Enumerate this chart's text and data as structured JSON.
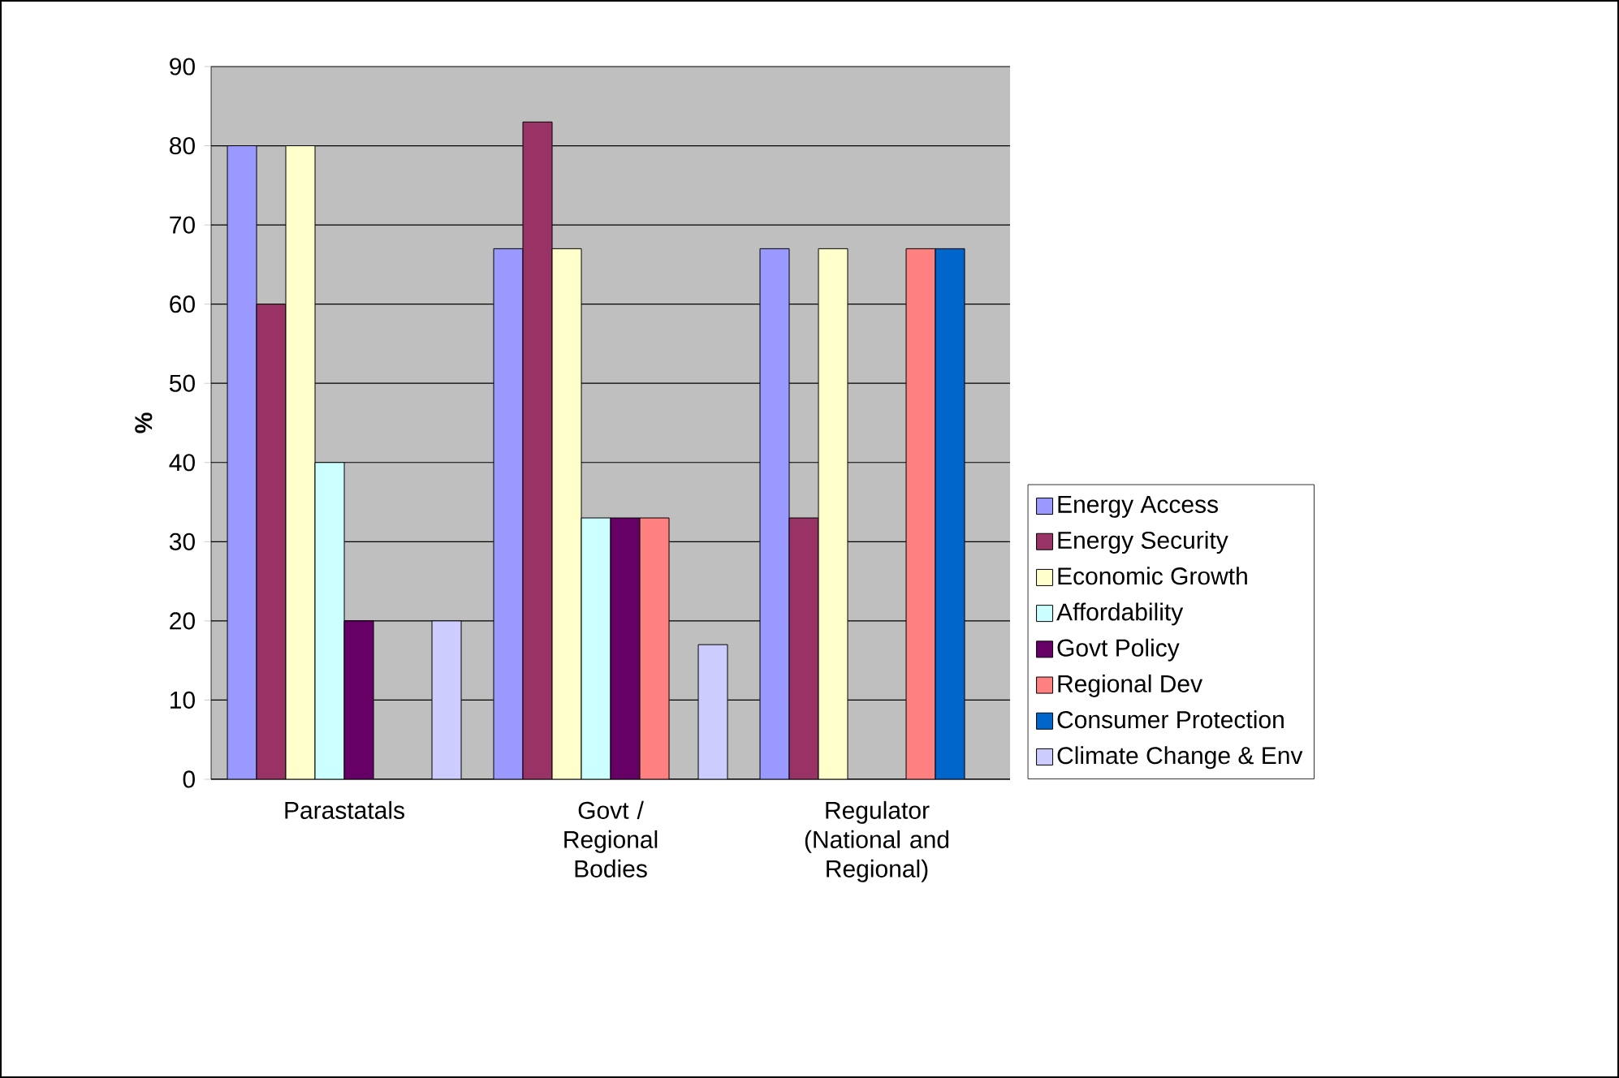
{
  "chart_data": {
    "type": "bar",
    "ylabel": "%",
    "categories": [
      "Parastatals",
      "Govt / Regional Bodies",
      "Regulator (National and Regional)"
    ],
    "series": [
      {
        "name": "Energy Access",
        "color": "#9999ff",
        "values": [
          80,
          67,
          67
        ]
      },
      {
        "name": "Energy Security",
        "color": "#993366",
        "values": [
          60,
          83,
          33
        ]
      },
      {
        "name": "Economic Growth",
        "color": "#ffffcc",
        "values": [
          80,
          67,
          67
        ]
      },
      {
        "name": "Affordability",
        "color": "#ccffff",
        "values": [
          40,
          33,
          null
        ]
      },
      {
        "name": "Govt Policy",
        "color": "#660066",
        "values": [
          20,
          33,
          null
        ]
      },
      {
        "name": "Regional Dev",
        "color": "#ff8080",
        "values": [
          null,
          33,
          67
        ]
      },
      {
        "name": "Consumer Protection",
        "color": "#0066cc",
        "values": [
          null,
          null,
          67
        ]
      },
      {
        "name": "Climate Change & Env",
        "color": "#ccccff",
        "values": [
          20,
          17,
          null
        ]
      }
    ],
    "ylim": [
      0,
      90
    ],
    "yticks": [
      0,
      10,
      20,
      30,
      40,
      50,
      60,
      70,
      80,
      90
    ],
    "grid": "y",
    "legend": "right"
  }
}
